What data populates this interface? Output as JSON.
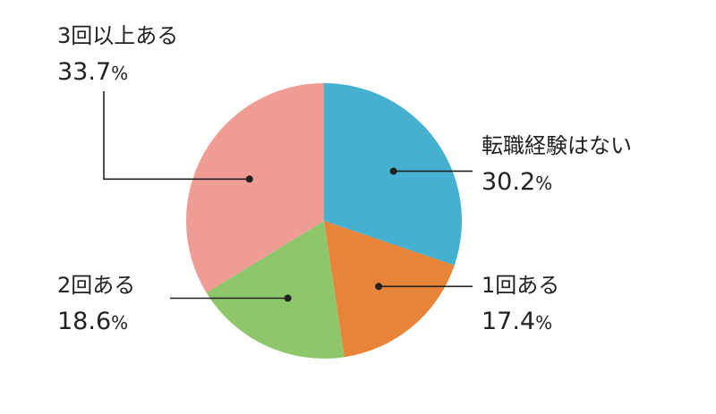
{
  "chart_data": {
    "type": "pie",
    "title": "",
    "slices": [
      {
        "label": "転職経験はない",
        "value": 30.2,
        "value_text": "30.2",
        "color": "#46b0d0"
      },
      {
        "label": "1回ある",
        "value": 17.4,
        "value_text": "17.4",
        "color": "#e8833a"
      },
      {
        "label": "2回ある",
        "value": 18.6,
        "value_text": "18.6",
        "color": "#8ec76b"
      },
      {
        "label": "3回以上ある",
        "value": 33.7,
        "value_text": "33.7",
        "color": "#ef9c95"
      }
    ],
    "unit": "%",
    "start": "12 o'clock",
    "direction": "clockwise",
    "legend": "none",
    "labels": "outside with leader lines"
  }
}
